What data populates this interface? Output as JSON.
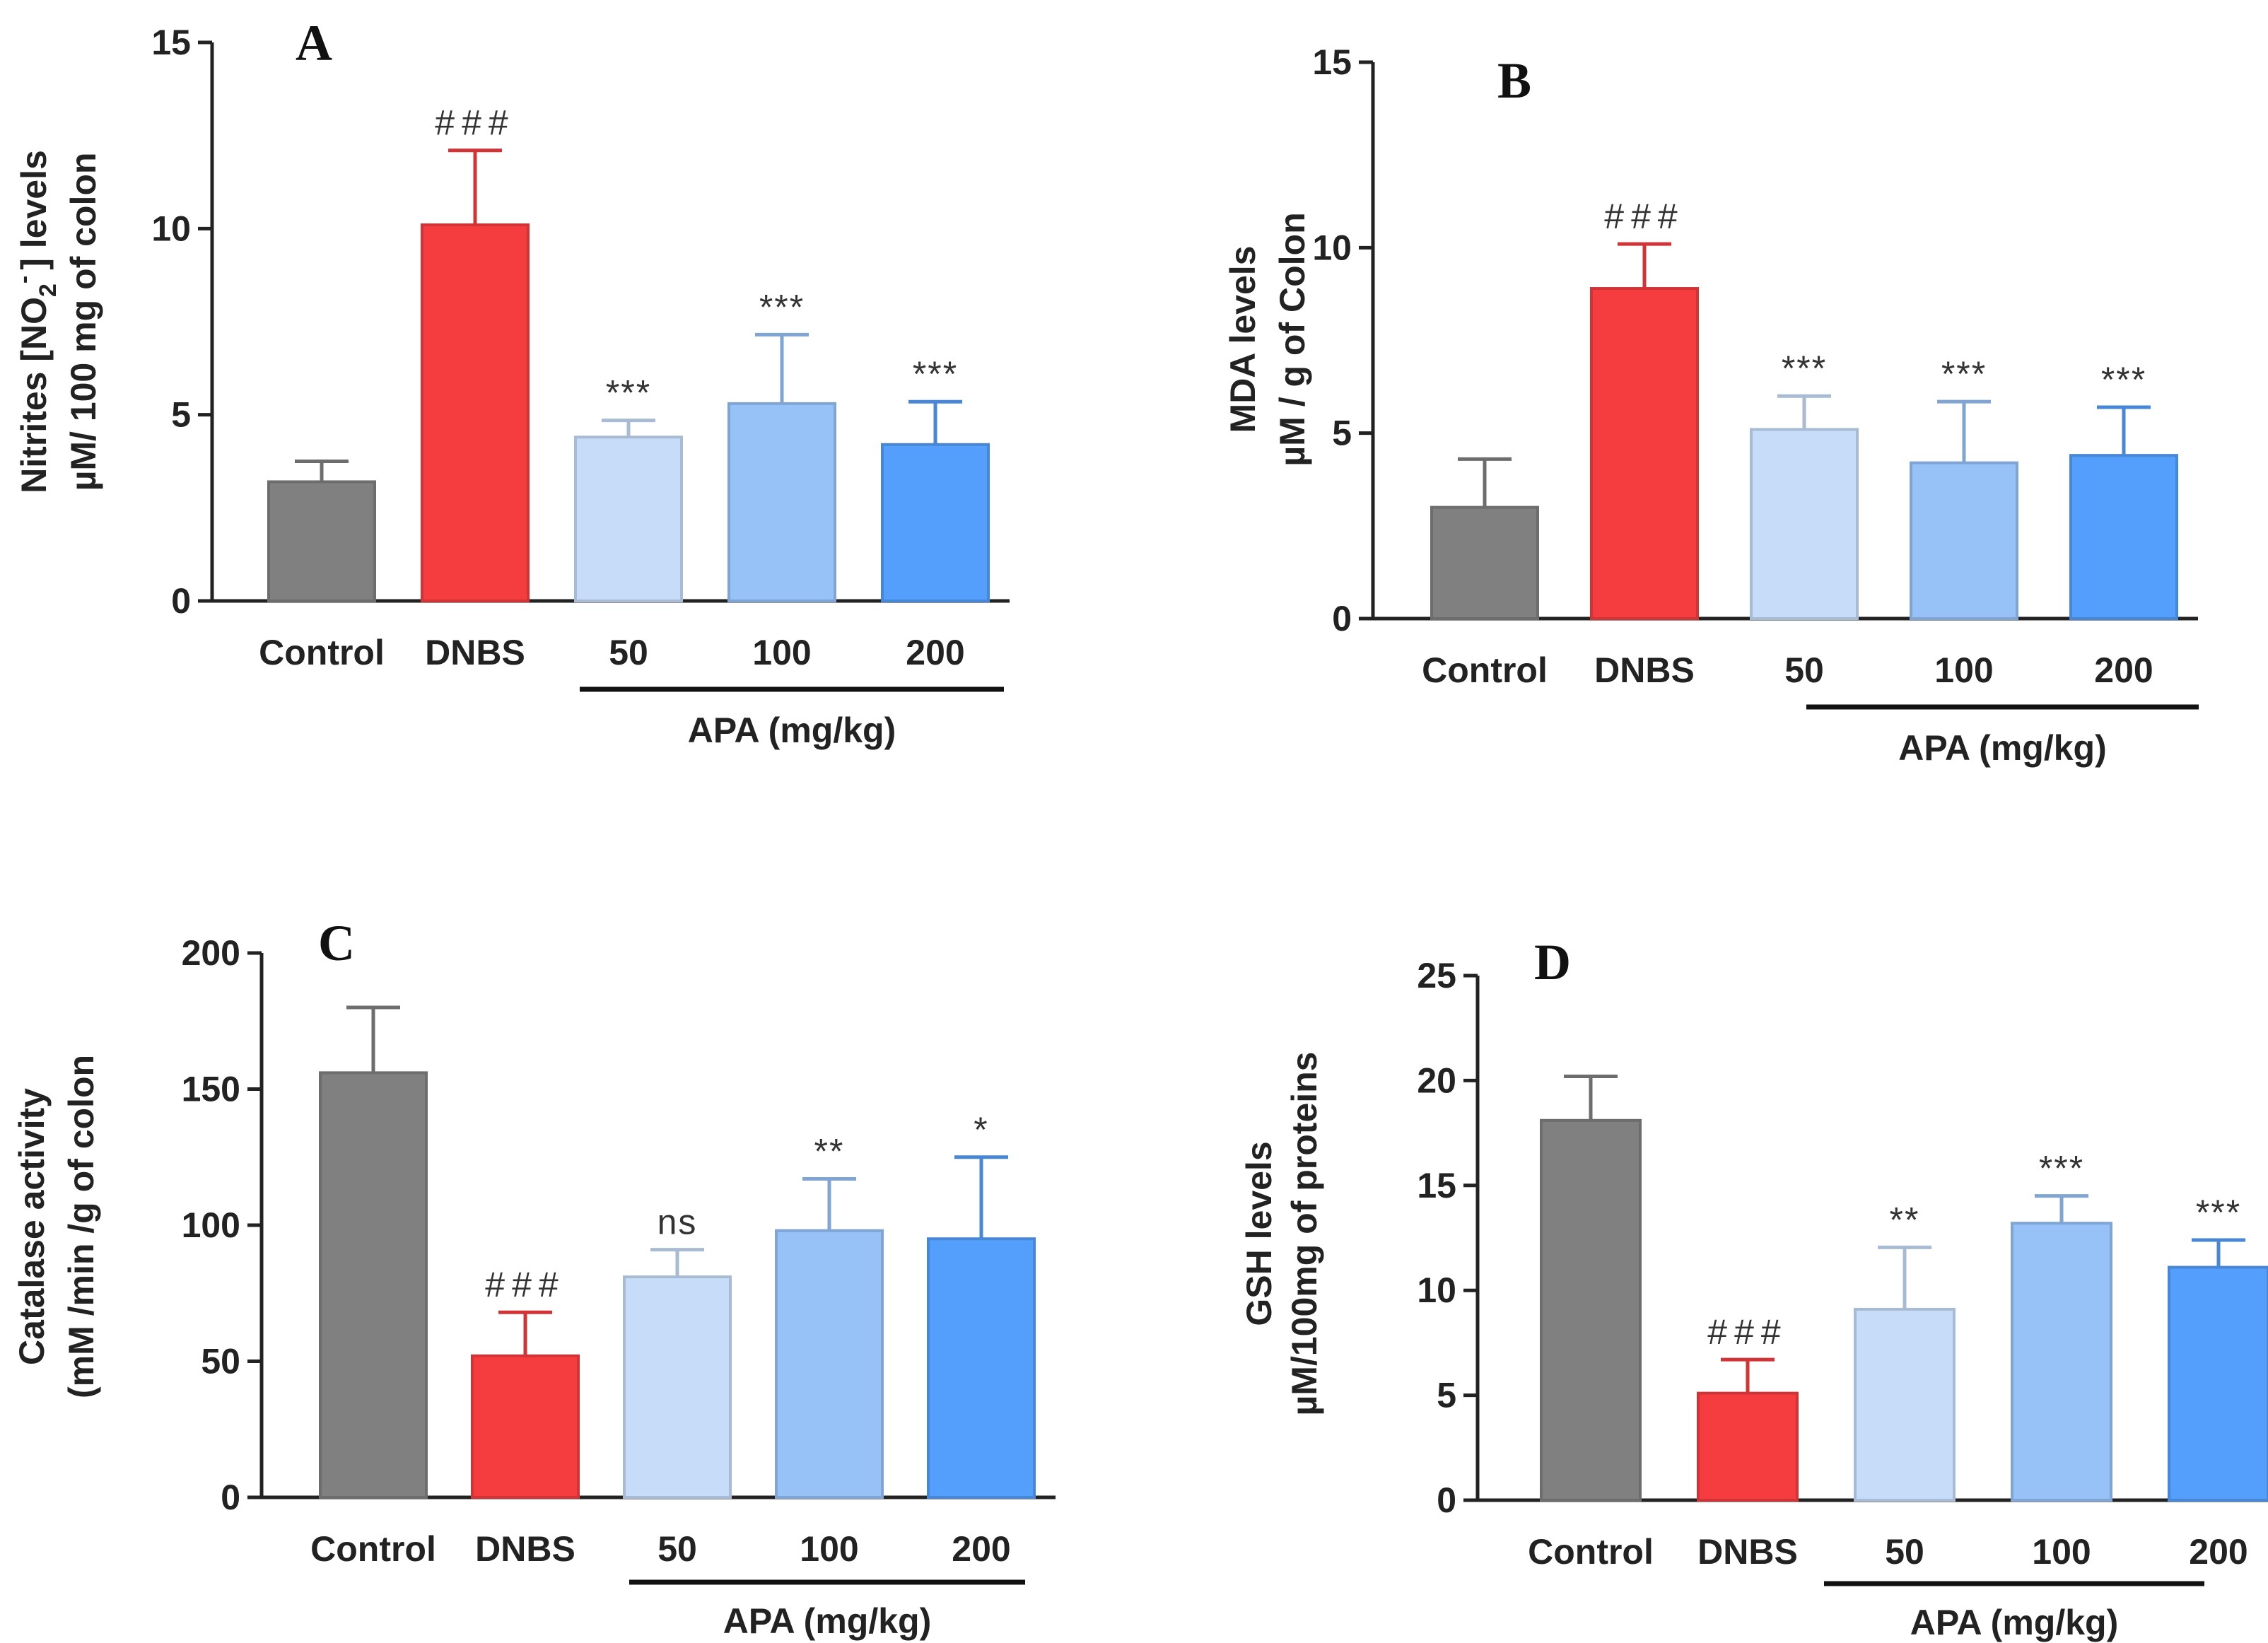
{
  "chart_data": [
    {
      "type": "bar",
      "panel": "A",
      "categories": [
        "Control",
        "DNBS",
        "50",
        "100",
        "200"
      ],
      "values": [
        3.2,
        10.1,
        4.4,
        5.3,
        4.2
      ],
      "errors": [
        0.55,
        2.0,
        0.45,
        1.85,
        1.15
      ],
      "annotations": [
        "",
        "###",
        "***",
        "***",
        "***"
      ],
      "colors": [
        "#808080",
        "#f53d3f",
        "#c6dcf8",
        "#96c2f8",
        "#549ffb"
      ],
      "ylabel_lines": [
        "Nitrites [NO",
        "] levels",
        "µM/ 100 mg of colon"
      ],
      "ylabel_sub": "2",
      "ylabel_sup": "-",
      "group_label": "APA (mg/kg)",
      "ylim": [
        0,
        15
      ],
      "yticks": [
        "0",
        "5",
        "10",
        "15"
      ]
    },
    {
      "type": "bar",
      "panel": "B",
      "categories": [
        "Control",
        "DNBS",
        "50",
        "100",
        "200"
      ],
      "values": [
        3.0,
        8.9,
        5.1,
        4.2,
        4.4
      ],
      "errors": [
        1.3,
        1.2,
        0.9,
        1.65,
        1.3
      ],
      "annotations": [
        "",
        "###",
        "***",
        "***",
        "***"
      ],
      "colors": [
        "#808080",
        "#f53d3f",
        "#c6dcf8",
        "#96c2f8",
        "#549ffb"
      ],
      "ylabel_lines": [
        "MDA levels",
        "µM / g of Colon"
      ],
      "group_label": "APA (mg/kg)",
      "ylim": [
        0,
        15
      ],
      "yticks": [
        "0",
        "5",
        "10",
        "15"
      ]
    },
    {
      "type": "bar",
      "panel": "C",
      "categories": [
        "Control",
        "DNBS",
        "50",
        "100",
        "200"
      ],
      "values": [
        156,
        52,
        81,
        98,
        95
      ],
      "errors": [
        24,
        16,
        10,
        19,
        30
      ],
      "annotations": [
        "",
        "###",
        "ns",
        "**",
        "*"
      ],
      "colors": [
        "#808080",
        "#f53d3f",
        "#c6dcf8",
        "#96c2f8",
        "#549ffb"
      ],
      "ylabel_lines": [
        "Catalase activity",
        "(mM /min /g of colon"
      ],
      "group_label": "APA (mg/kg)",
      "ylim": [
        0,
        200
      ],
      "yticks": [
        "0",
        "50",
        "100",
        "150",
        "200"
      ]
    },
    {
      "type": "bar",
      "panel": "D",
      "categories": [
        "Control",
        "DNBS",
        "50",
        "100",
        "200"
      ],
      "values": [
        18.1,
        5.1,
        9.1,
        13.2,
        11.1
      ],
      "errors": [
        2.1,
        1.6,
        2.95,
        1.3,
        1.3
      ],
      "annotations": [
        "",
        "###",
        "**",
        "***",
        "***"
      ],
      "colors": [
        "#808080",
        "#f53d3f",
        "#c6dcf8",
        "#96c2f8",
        "#549ffb"
      ],
      "ylabel_lines": [
        "GSH levels",
        "µM/100mg of proteins"
      ],
      "group_label": "APA (mg/kg)",
      "ylim": [
        0,
        25
      ],
      "yticks": [
        "0",
        "5",
        "10",
        "15",
        "20",
        "25"
      ]
    }
  ]
}
